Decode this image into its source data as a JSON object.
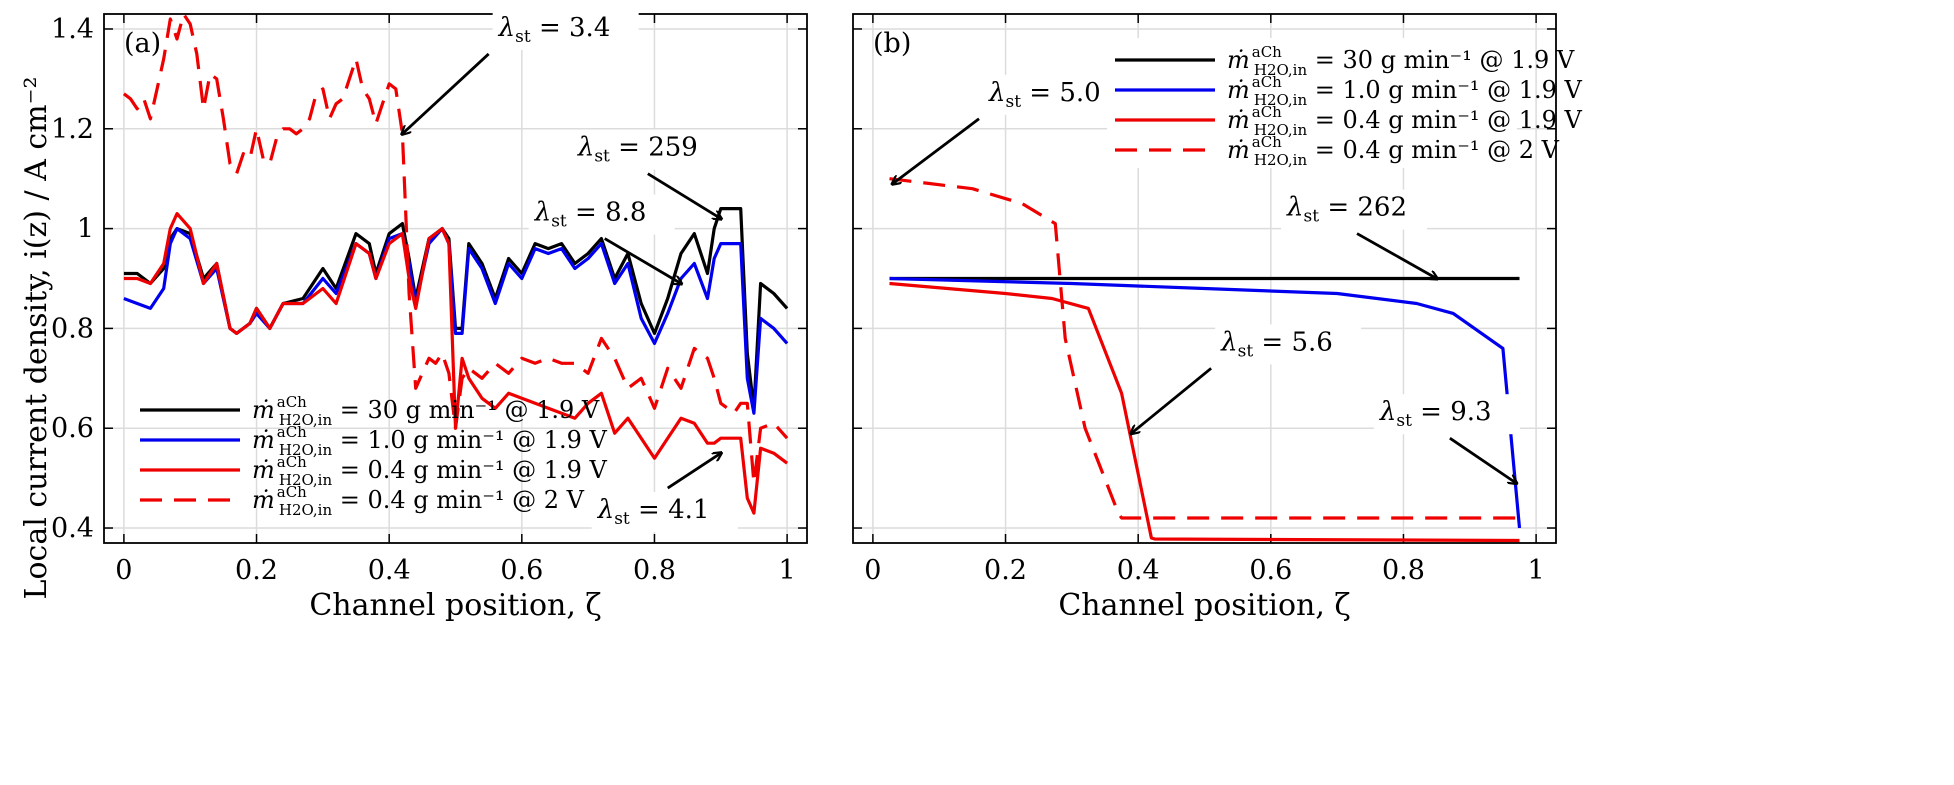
{
  "figure": {
    "ylabel": "Local current density, i(z) / A cm⁻²"
  },
  "chart_data": [
    {
      "type": "line",
      "panel_label": "(a)",
      "xlabel": "Channel position, ζ",
      "xlim": [
        -0.03,
        1.03
      ],
      "ylim": [
        0.37,
        1.43
      ],
      "xticks": [
        0,
        0.2,
        0.4,
        0.6,
        0.8,
        1
      ],
      "xtick_labels": [
        "0",
        "0.2",
        "0.4",
        "0.6",
        "0.8",
        "1"
      ],
      "yticks": [
        0.4,
        0.6,
        0.8,
        1.0,
        1.2,
        1.4
      ],
      "ytick_labels": [
        "0.4",
        "0.6",
        "0.8",
        "1",
        "1.2",
        "1.4"
      ],
      "grid": true,
      "legend_position": "bottom-left",
      "series": [
        {
          "name": "ṁ H2O,in aCh = 30 g min-1 @ 1.9 V",
          "legend_text": "= 30 g min⁻¹ @ 1.9 V",
          "color": "#000000",
          "dash": "solid",
          "x": [
            0,
            0.02,
            0.04,
            0.06,
            0.07,
            0.08,
            0.1,
            0.12,
            0.14,
            0.16,
            0.17,
            0.19,
            0.2,
            0.22,
            0.24,
            0.27,
            0.3,
            0.32,
            0.35,
            0.37,
            0.38,
            0.4,
            0.42,
            0.43,
            0.44,
            0.46,
            0.48,
            0.49,
            0.5,
            0.51,
            0.52,
            0.54,
            0.56,
            0.58,
            0.6,
            0.62,
            0.64,
            0.66,
            0.68,
            0.7,
            0.72,
            0.74,
            0.76,
            0.78,
            0.8,
            0.82,
            0.84,
            0.86,
            0.88,
            0.89,
            0.9,
            0.92,
            0.93,
            0.94,
            0.95,
            0.96,
            0.98,
            1.0
          ],
          "y": [
            0.91,
            0.91,
            0.89,
            0.92,
            0.98,
            1.0,
            0.99,
            0.9,
            0.93,
            0.8,
            0.79,
            0.81,
            0.84,
            0.8,
            0.85,
            0.86,
            0.92,
            0.88,
            0.99,
            0.97,
            0.91,
            0.99,
            1.01,
            0.94,
            0.86,
            0.98,
            1.0,
            0.98,
            0.8,
            0.8,
            0.97,
            0.93,
            0.86,
            0.94,
            0.91,
            0.97,
            0.96,
            0.97,
            0.93,
            0.95,
            0.98,
            0.9,
            0.95,
            0.85,
            0.79,
            0.86,
            0.95,
            0.99,
            0.91,
            1.0,
            1.04,
            1.04,
            1.04,
            0.75,
            0.64,
            0.89,
            0.87,
            0.84
          ]
        },
        {
          "name": "ṁ H2O,in aCh = 1.0 g min-1 @ 1.9 V",
          "legend_text": "= 1.0 g min⁻¹ @ 1.9 V",
          "color": "#0000ee",
          "dash": "solid",
          "x": [
            0,
            0.02,
            0.04,
            0.06,
            0.07,
            0.08,
            0.1,
            0.12,
            0.14,
            0.16,
            0.17,
            0.19,
            0.2,
            0.22,
            0.24,
            0.27,
            0.3,
            0.32,
            0.35,
            0.37,
            0.38,
            0.4,
            0.42,
            0.43,
            0.44,
            0.46,
            0.48,
            0.49,
            0.5,
            0.51,
            0.52,
            0.54,
            0.56,
            0.58,
            0.6,
            0.62,
            0.64,
            0.66,
            0.68,
            0.7,
            0.72,
            0.74,
            0.76,
            0.78,
            0.8,
            0.82,
            0.84,
            0.86,
            0.88,
            0.89,
            0.9,
            0.92,
            0.93,
            0.94,
            0.95,
            0.96,
            0.98,
            1.0
          ],
          "y": [
            0.86,
            0.85,
            0.84,
            0.88,
            0.97,
            1.0,
            0.98,
            0.89,
            0.92,
            0.8,
            0.79,
            0.81,
            0.83,
            0.8,
            0.85,
            0.85,
            0.9,
            0.87,
            0.97,
            0.95,
            0.9,
            0.98,
            0.99,
            0.93,
            0.85,
            0.97,
            1.0,
            0.97,
            0.79,
            0.79,
            0.96,
            0.92,
            0.85,
            0.93,
            0.9,
            0.96,
            0.95,
            0.96,
            0.92,
            0.94,
            0.97,
            0.89,
            0.93,
            0.82,
            0.77,
            0.83,
            0.9,
            0.93,
            0.86,
            0.94,
            0.97,
            0.97,
            0.97,
            0.7,
            0.63,
            0.82,
            0.8,
            0.77
          ]
        },
        {
          "name": "ṁ H2O,in aCh = 0.4 g min-1 @ 1.9 V",
          "legend_text": "= 0.4 g min⁻¹ @ 1.9 V",
          "color": "#ee0000",
          "dash": "solid",
          "x": [
            0,
            0.02,
            0.04,
            0.06,
            0.07,
            0.08,
            0.1,
            0.12,
            0.14,
            0.16,
            0.17,
            0.19,
            0.2,
            0.22,
            0.24,
            0.27,
            0.3,
            0.32,
            0.35,
            0.37,
            0.38,
            0.4,
            0.42,
            0.43,
            0.44,
            0.46,
            0.48,
            0.49,
            0.5,
            0.51,
            0.52,
            0.54,
            0.56,
            0.58,
            0.6,
            0.62,
            0.64,
            0.66,
            0.68,
            0.7,
            0.72,
            0.74,
            0.76,
            0.78,
            0.8,
            0.82,
            0.84,
            0.86,
            0.88,
            0.89,
            0.9,
            0.92,
            0.93,
            0.94,
            0.95,
            0.96,
            0.98,
            1.0
          ],
          "y": [
            0.9,
            0.9,
            0.89,
            0.93,
            1.0,
            1.03,
            1.0,
            0.89,
            0.93,
            0.8,
            0.79,
            0.81,
            0.84,
            0.8,
            0.85,
            0.85,
            0.88,
            0.85,
            0.97,
            0.95,
            0.9,
            0.97,
            0.99,
            0.9,
            0.84,
            0.98,
            1.0,
            0.97,
            0.6,
            0.74,
            0.7,
            0.66,
            0.64,
            0.67,
            0.66,
            0.65,
            0.64,
            0.63,
            0.62,
            0.65,
            0.67,
            0.59,
            0.62,
            0.58,
            0.54,
            0.58,
            0.62,
            0.61,
            0.57,
            0.57,
            0.58,
            0.58,
            0.58,
            0.46,
            0.43,
            0.56,
            0.55,
            0.53
          ]
        },
        {
          "name": "ṁ H2O,in aCh = 0.4 g min-1 @ 2 V",
          "legend_text": "= 0.4 g min⁻¹ @ 2 V",
          "color": "#ee0000",
          "dash": "dashed",
          "x": [
            0,
            0.01,
            0.02,
            0.03,
            0.04,
            0.05,
            0.06,
            0.07,
            0.08,
            0.09,
            0.1,
            0.11,
            0.12,
            0.13,
            0.14,
            0.15,
            0.16,
            0.17,
            0.18,
            0.19,
            0.2,
            0.21,
            0.22,
            0.23,
            0.24,
            0.25,
            0.26,
            0.27,
            0.28,
            0.29,
            0.3,
            0.31,
            0.32,
            0.33,
            0.34,
            0.35,
            0.36,
            0.37,
            0.38,
            0.39,
            0.4,
            0.41,
            0.42,
            0.43,
            0.44,
            0.45,
            0.46,
            0.47,
            0.48,
            0.49,
            0.5,
            0.51,
            0.52,
            0.54,
            0.56,
            0.58,
            0.6,
            0.62,
            0.64,
            0.66,
            0.68,
            0.7,
            0.72,
            0.74,
            0.76,
            0.78,
            0.8,
            0.82,
            0.84,
            0.86,
            0.88,
            0.89,
            0.9,
            0.92,
            0.93,
            0.94,
            0.95,
            0.96,
            0.98,
            1.0
          ],
          "y": [
            1.27,
            1.26,
            1.24,
            1.26,
            1.22,
            1.28,
            1.34,
            1.42,
            1.38,
            1.43,
            1.41,
            1.35,
            1.24,
            1.31,
            1.3,
            1.22,
            1.13,
            1.11,
            1.15,
            1.14,
            1.2,
            1.14,
            1.13,
            1.18,
            1.2,
            1.2,
            1.19,
            1.2,
            1.22,
            1.27,
            1.28,
            1.22,
            1.25,
            1.26,
            1.3,
            1.34,
            1.28,
            1.26,
            1.21,
            1.25,
            1.29,
            1.28,
            1.19,
            0.87,
            0.68,
            0.71,
            0.74,
            0.73,
            0.75,
            0.71,
            0.6,
            0.7,
            0.72,
            0.7,
            0.73,
            0.71,
            0.74,
            0.73,
            0.74,
            0.73,
            0.73,
            0.71,
            0.78,
            0.74,
            0.68,
            0.7,
            0.64,
            0.72,
            0.68,
            0.76,
            0.74,
            0.7,
            0.65,
            0.63,
            0.65,
            0.65,
            0.49,
            0.6,
            0.61,
            0.58
          ]
        }
      ],
      "annotations": [
        {
          "text": "λst = 3.4",
          "x": 0.42,
          "y": 1.19,
          "tx": 0.55,
          "ty": 1.35
        },
        {
          "text": "λst = 259",
          "x": 0.9,
          "y": 1.02,
          "tx": 0.79,
          "ty": 1.11
        },
        {
          "text": "λst = 8.8",
          "x": 0.84,
          "y": 0.89,
          "tx": 0.725,
          "ty": 0.98
        },
        {
          "text": "λst = 4.1",
          "x": 0.9,
          "y": 0.55,
          "tx": 0.82,
          "ty": 0.48
        }
      ]
    },
    {
      "type": "line",
      "panel_label": "(b)",
      "xlabel": "Channel position, ζ",
      "xlim": [
        -0.03,
        1.03
      ],
      "ylim": [
        0.37,
        1.43
      ],
      "xticks": [
        0,
        0.2,
        0.4,
        0.6,
        0.8,
        1
      ],
      "xtick_labels": [
        "0",
        "0.2",
        "0.4",
        "0.6",
        "0.8",
        "1"
      ],
      "yticks": [
        0.4,
        0.6,
        0.8,
        1.0,
        1.2,
        1.4
      ],
      "grid": true,
      "legend_position": "top-right",
      "series": [
        {
          "name": "ṁ H2O,in aCh = 30 g min-1 @ 1.9 V",
          "legend_text": "= 30 g min⁻¹ @ 1.9 V",
          "color": "#000000",
          "dash": "solid",
          "x": [
            0.025,
            0.975
          ],
          "y": [
            0.9,
            0.9
          ]
        },
        {
          "name": "ṁ H2O,in aCh = 1.0 g min-1 @ 1.9 V",
          "legend_text": "= 1.0 g min⁻¹ @ 1.9 V",
          "color": "#0000ee",
          "dash": "solid",
          "x": [
            0.025,
            0.3,
            0.5,
            0.7,
            0.82,
            0.875,
            0.95,
            0.975
          ],
          "y": [
            0.9,
            0.89,
            0.88,
            0.87,
            0.85,
            0.83,
            0.76,
            0.4
          ]
        },
        {
          "name": "ṁ H2O,in aCh = 0.4 g min-1 @ 1.9 V",
          "legend_text": "= 0.4 g min⁻¹ @ 1.9 V",
          "color": "#ee0000",
          "dash": "solid",
          "x": [
            0.025,
            0.2,
            0.27,
            0.325,
            0.375,
            0.42,
            0.425,
            0.975
          ],
          "y": [
            0.89,
            0.87,
            0.86,
            0.84,
            0.67,
            0.38,
            0.378,
            0.375
          ]
        },
        {
          "name": "ṁ H2O,in aCh = 0.4 g min-1 @ 2 V",
          "legend_text": "= 0.4 g min⁻¹ @ 2 V",
          "color": "#ee0000",
          "dash": "dashed",
          "x": [
            0.025,
            0.15,
            0.225,
            0.275,
            0.29,
            0.32,
            0.37,
            0.375,
            0.975
          ],
          "y": [
            1.1,
            1.08,
            1.05,
            1.01,
            0.78,
            0.6,
            0.43,
            0.42,
            0.42
          ]
        }
      ],
      "annotations": [
        {
          "text": "λst = 5.0",
          "x": 0.03,
          "y": 1.09,
          "tx": 0.16,
          "ty": 1.22
        },
        {
          "text": "λst = 262",
          "x": 0.85,
          "y": 0.9,
          "tx": 0.73,
          "ty": 0.99
        },
        {
          "text": "λst = 5.6",
          "x": 0.39,
          "y": 0.59,
          "tx": 0.51,
          "ty": 0.72
        },
        {
          "text": "λst = 9.3",
          "x": 0.97,
          "y": 0.49,
          "tx": 0.87,
          "ty": 0.58
        }
      ]
    }
  ]
}
